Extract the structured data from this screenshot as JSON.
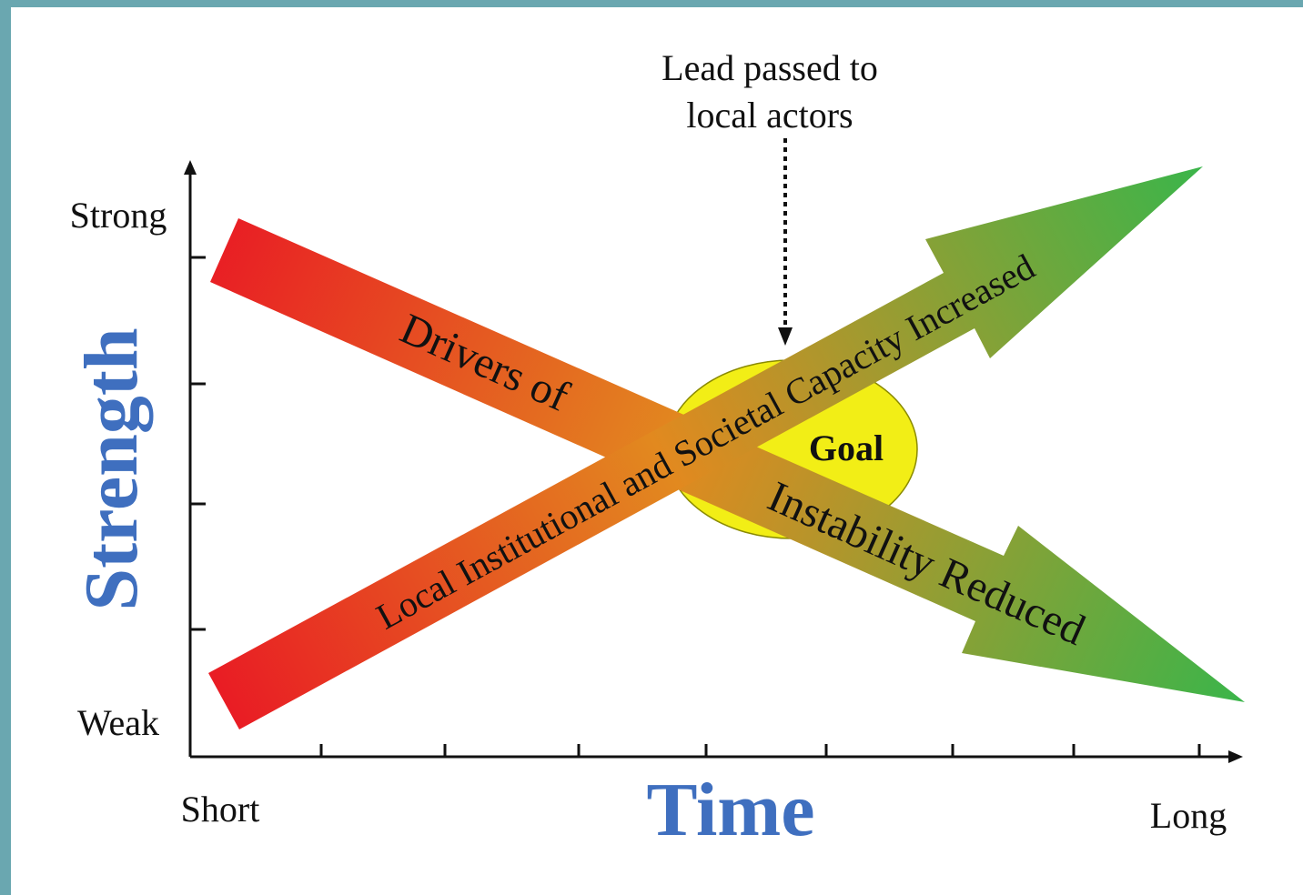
{
  "annotation": {
    "line1": "Lead passed to",
    "line2": "local actors"
  },
  "y_axis": {
    "title": "Strength",
    "top_label": "Strong",
    "bottom_label": "Weak",
    "tick_count": 4
  },
  "x_axis": {
    "title": "Time",
    "left_label": "Short",
    "right_label": "Long",
    "tick_count": 8
  },
  "goal": {
    "label": "Goal"
  },
  "arrows": {
    "decreasing": {
      "label_part1": "Drivers of",
      "label_part2": "Instability Reduced"
    },
    "increasing": {
      "label": "Local Institutional and Societal Capacity Increased"
    }
  },
  "colors": {
    "frame": "#6aa7b0",
    "axis_title": "#3f6fbf",
    "goal_fill": "#f2ee16",
    "arrow_start": "#e91c24",
    "arrow_mid": "#e2891f",
    "arrow_end": "#3ab54a",
    "text": "#111111"
  }
}
